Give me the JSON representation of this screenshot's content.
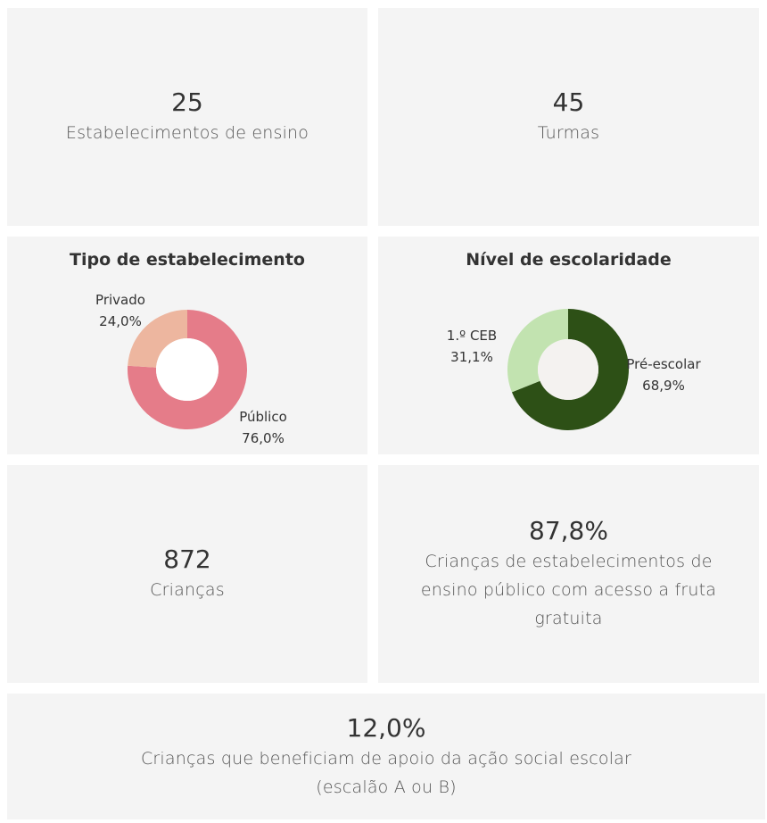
{
  "kpis": {
    "estabelecimentos": {
      "value": "25",
      "label": "Estabelecimentos de ensino"
    },
    "turmas": {
      "value": "45",
      "label": "Turmas"
    },
    "criancas": {
      "value": "872",
      "label": "Crianças"
    },
    "fruta": {
      "value": "87,8%",
      "label": "Crianças de estabelecimentos de ensino público com acesso a fruta gratuita"
    },
    "acao_social": {
      "value": "12,0%",
      "label": "Crianças que beneficiam de apoio da ação social escolar (escalão A ou B)"
    }
  },
  "chart_data": [
    {
      "type": "pie",
      "title": "Tipo de estabelecimento",
      "slices": [
        {
          "name": "Público",
          "value": 76.0,
          "label": "76,0%",
          "color": "#e57c89"
        },
        {
          "name": "Privado",
          "value": 24.0,
          "label": "24,0%",
          "color": "#edb69f"
        }
      ],
      "hole_color": "#ffffff"
    },
    {
      "type": "pie",
      "title": "Nível de escolaridade",
      "slices": [
        {
          "name": "Pré-escolar",
          "value": 68.9,
          "label": "68,9%",
          "color": "#2d5016"
        },
        {
          "name": "1.º CEB",
          "value": 31.1,
          "label": "31,1%",
          "color": "#c2e3b0"
        }
      ],
      "hole_color": "#f4f2f0"
    }
  ]
}
